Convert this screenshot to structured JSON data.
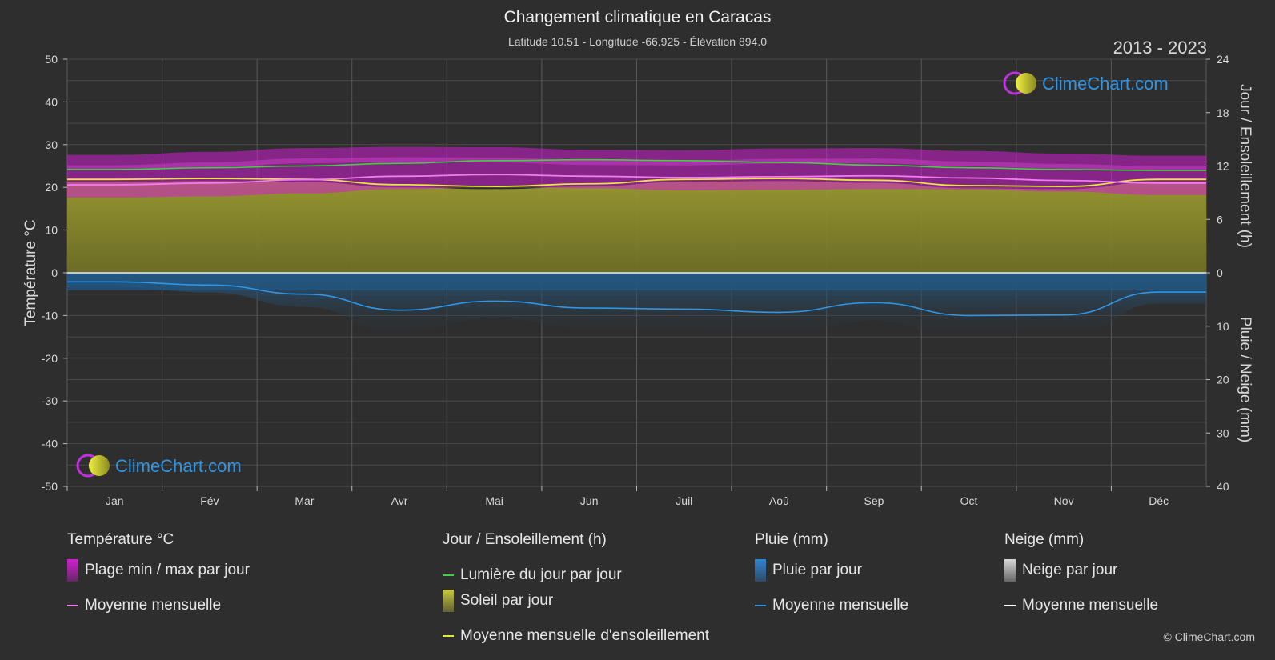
{
  "header": {
    "title": "Changement climatique en Caracas",
    "subtitle": "Latitude 10.51 - Longitude -66.925 - Élévation 894.0",
    "years": "2013 - 2023",
    "copyright": "© ClimeChart.com",
    "watermark": "ClimeChart.com"
  },
  "colors": {
    "background": "#2e2e2e",
    "temp_range": "#d21ed2",
    "temp_mean": "#f07cf0",
    "daylight": "#3ed23e",
    "sunshine": "#8a8a2c",
    "sunshine_mean": "#e6e63c",
    "rain": "#1f6fb0",
    "rain_mean": "#2f96e6",
    "snow_mean": "#ffffff",
    "brand": "#2f96e6"
  },
  "chart_data": {
    "type": "area",
    "months": [
      "Jan",
      "Fév",
      "Mar",
      "Avr",
      "Mai",
      "Jun",
      "Juil",
      "Aoû",
      "Sep",
      "Oct",
      "Nov",
      "Déc"
    ],
    "left_axis": {
      "label": "Température °C",
      "ticks": [
        "50",
        "40",
        "30",
        "20",
        "10",
        "0",
        "-10",
        "-20",
        "-30",
        "-40",
        "-50"
      ],
      "ylim": [
        -50,
        50
      ]
    },
    "right_axis_top": {
      "label": "Jour / Ensoleillement (h)",
      "ticks": [
        "24",
        "18",
        "12",
        "6",
        "0"
      ],
      "ylim": [
        0,
        24
      ]
    },
    "right_axis_bottom": {
      "label": "Pluie / Neige (mm)",
      "ticks": [
        "0",
        "10",
        "20",
        "30",
        "40"
      ],
      "ylim": [
        0,
        40
      ]
    },
    "grid": true,
    "series": [
      {
        "name": "Lumière du jour par jour",
        "axis": "hours",
        "values": [
          11.6,
          11.8,
          12.0,
          12.3,
          12.6,
          12.7,
          12.6,
          12.4,
          12.1,
          11.8,
          11.6,
          11.5
        ]
      },
      {
        "name": "Moyenne mensuelle d'ensoleillement",
        "axis": "hours",
        "values": [
          10.5,
          10.6,
          10.5,
          9.9,
          9.7,
          10.0,
          10.5,
          10.6,
          10.4,
          9.8,
          9.7,
          10.5
        ]
      },
      {
        "name": "Température max moyenne",
        "axis": "temp",
        "values": [
          24.6,
          25.3,
          26.2,
          26.5,
          26.4,
          25.8,
          25.7,
          26.1,
          26.2,
          25.5,
          24.9,
          24.4
        ]
      },
      {
        "name": "Température min moyenne",
        "axis": "temp",
        "values": [
          17.6,
          17.9,
          18.6,
          19.6,
          20.2,
          19.8,
          19.3,
          19.4,
          19.6,
          19.5,
          19.0,
          18.2
        ]
      },
      {
        "name": "Moyenne mensuelle",
        "axis": "temp",
        "values": [
          20.6,
          21.0,
          21.8,
          22.6,
          23.0,
          22.6,
          22.3,
          22.5,
          22.7,
          22.2,
          21.6,
          21.0
        ]
      },
      {
        "name": "Moyenne mensuelle pluie",
        "axis": "rain",
        "values": [
          1.7,
          2.3,
          4.0,
          7.0,
          5.3,
          6.6,
          6.8,
          7.4,
          5.6,
          8.0,
          7.9,
          3.6
        ]
      },
      {
        "name": "Moyenne mensuelle neige",
        "axis": "rain",
        "values": [
          0,
          0,
          0,
          0,
          0,
          0,
          0,
          0,
          0,
          0,
          0,
          0
        ]
      }
    ]
  },
  "legend": {
    "groups": [
      {
        "title": "Température °C",
        "items": [
          {
            "label": "Plage min / max par jour",
            "kind": "box",
            "color": "#d21ed2"
          },
          {
            "label": "Moyenne mensuelle",
            "kind": "line",
            "color": "#f07cf0"
          }
        ]
      },
      {
        "title": "Jour / Ensoleillement (h)",
        "items": [
          {
            "label": "Lumière du jour par jour",
            "kind": "line",
            "color": "#3ed23e"
          },
          {
            "label": "Soleil par jour",
            "kind": "box",
            "color": "#c8c83c"
          },
          {
            "label": "Moyenne mensuelle d'ensoleillement",
            "kind": "line",
            "color": "#e6e63c"
          }
        ]
      },
      {
        "title": "Pluie (mm)",
        "items": [
          {
            "label": "Pluie par jour",
            "kind": "box",
            "color": "#2f86d6"
          },
          {
            "label": "Moyenne mensuelle",
            "kind": "line",
            "color": "#2f96e6"
          }
        ]
      },
      {
        "title": "Neige (mm)",
        "items": [
          {
            "label": "Neige par jour",
            "kind": "box",
            "color": "#d8d8d8"
          },
          {
            "label": "Moyenne mensuelle",
            "kind": "line",
            "color": "#ffffff"
          }
        ]
      }
    ]
  }
}
